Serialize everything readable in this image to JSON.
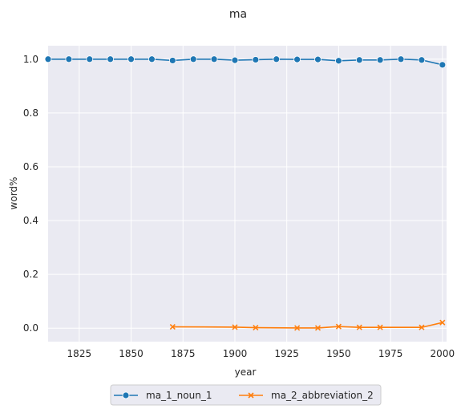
{
  "chart_data": {
    "type": "line",
    "title": "ma",
    "xlabel": "year",
    "ylabel": "word%",
    "xlim": [
      1810,
      2002
    ],
    "ylim": [
      -0.05,
      1.05
    ],
    "x_ticks": [
      1825,
      1850,
      1875,
      1900,
      1925,
      1950,
      1975,
      2000
    ],
    "y_ticks": [
      0.0,
      0.2,
      0.4,
      0.6,
      0.8,
      1.0
    ],
    "grid": true,
    "legend_position": "bottom-center",
    "series": [
      {
        "name": "ma_1_noun_1",
        "color": "#1f77b4",
        "marker": "circle",
        "x": [
          1810,
          1820,
          1830,
          1840,
          1850,
          1860,
          1870,
          1880,
          1890,
          1900,
          1910,
          1920,
          1930,
          1940,
          1950,
          1960,
          1970,
          1980,
          1990,
          2000
        ],
        "y": [
          1.0,
          1.0,
          1.0,
          1.0,
          1.0,
          1.0,
          0.995,
          1.0,
          1.0,
          0.996,
          0.998,
          1.0,
          0.999,
          0.999,
          0.994,
          0.997,
          0.997,
          1.0,
          0.997,
          0.979
        ]
      },
      {
        "name": "ma_2_abbreviation_2",
        "color": "#ff7f0e",
        "marker": "x",
        "x": [
          1870,
          1900,
          1910,
          1930,
          1940,
          1950,
          1960,
          1970,
          1990,
          2000
        ],
        "y": [
          0.005,
          0.004,
          0.002,
          0.001,
          0.001,
          0.006,
          0.003,
          0.003,
          0.003,
          0.021
        ]
      }
    ]
  }
}
